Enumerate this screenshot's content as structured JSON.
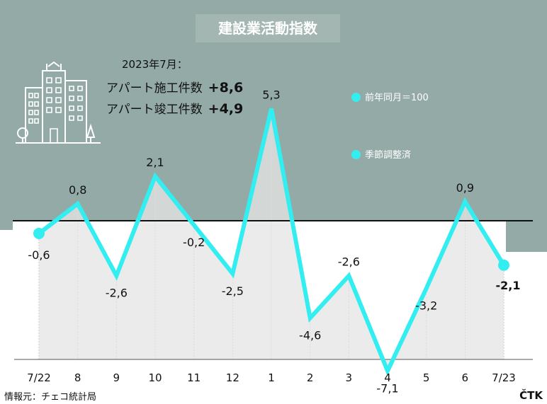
{
  "title": "建設業活動指数",
  "info": {
    "header": "2023年7月：",
    "rows": [
      {
        "label": "アパート施工件数",
        "value": "+8,6"
      },
      {
        "label": "アパート竣工件数",
        "value": "+4,9"
      }
    ]
  },
  "legend": [
    "前年同月＝100",
    "季節調整済"
  ],
  "source": "情報元：チェコ統計局",
  "brand": "ČTK",
  "icon": "apartment-building-icon",
  "colors": {
    "bg_top": "#93aaa6",
    "line": "#33eef0",
    "area": "#e6e6e6",
    "baseline": "#111111"
  },
  "chart_data": {
    "type": "line",
    "categories": [
      "7/22",
      "8",
      "9",
      "10",
      "11",
      "12",
      "1",
      "2",
      "3",
      "4",
      "5",
      "6",
      "7/23"
    ],
    "values": [
      -0.6,
      0.8,
      -2.6,
      2.1,
      -0.2,
      -2.5,
      5.3,
      -4.6,
      -2.6,
      -7.1,
      -3.2,
      0.9,
      -2.1
    ],
    "value_labels": [
      "-0,6",
      "0,8",
      "-2,6",
      "2,1",
      "-0,2",
      "-2,5",
      "5,3",
      "-4,6",
      "-2,6",
      "-7,1",
      "-3,2",
      "0,9",
      "-2,1"
    ],
    "reference_line": 0,
    "grid": "vertical"
  }
}
